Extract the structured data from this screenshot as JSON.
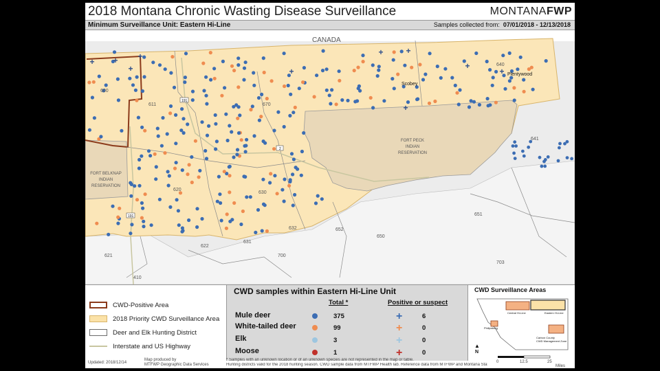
{
  "header": {
    "title": "2018 Montana Chronic Wasting Disease Surveillance",
    "brand_light": "MONTANA",
    "brand_bold": "FWP",
    "unit": "Minimum Surveillance Unit: Eastern Hi-Line",
    "samples_label": "Samples collected from:",
    "samples_range": "07/01/2018 - 12/13/2018"
  },
  "map": {
    "country_label": "CANADA",
    "places": [
      "Scobey",
      "Plentywood"
    ],
    "reservations": {
      "fort_peck": [
        "FORT PECK",
        "INDIAN",
        "RESERVATION"
      ],
      "fort_belknap": [
        "FORT BELKNAP",
        "INDIAN",
        "RESERVATION"
      ]
    },
    "districts": [
      "600",
      "611",
      "670",
      "640",
      "641",
      "620",
      "630",
      "632",
      "652",
      "650",
      "651",
      "622",
      "631",
      "700",
      "621",
      "410",
      "703"
    ],
    "highways": [
      "191",
      "2",
      "191"
    ]
  },
  "legend": {
    "items": [
      {
        "label": "CWD-Positive Area",
        "color": "#8b3a1a"
      },
      {
        "label": "2018 Priority CWD Surveillance Area",
        "color": "#fbe2a8"
      },
      {
        "label": "Deer and Elk Hunting District",
        "color": "#6b6b6b"
      },
      {
        "label": "Interstate and US Highway",
        "color": "#c8c6a0"
      }
    ]
  },
  "table": {
    "title": "CWD samples within Eastern Hi-Line Unit",
    "total_header": "Total *",
    "positive_header": "Positive or suspect",
    "rows": [
      {
        "species": "Mule deer",
        "color": "#3c6db3",
        "total": "375",
        "positive": "6"
      },
      {
        "species": "White-tailed deer",
        "color": "#ef8c50",
        "total": "99",
        "positive": "0"
      },
      {
        "species": "Elk",
        "color": "#9dc6e0",
        "total": "3",
        "positive": "0"
      },
      {
        "species": "Moose",
        "color": "#c0302a",
        "total": "1",
        "positive": "0"
      }
    ]
  },
  "inset": {
    "title": "CWD Surveillance Areas",
    "labels": [
      "Eastern Hi-Line",
      "Central Hi-Line",
      "Philipsburg",
      "Carbon County",
      "CWD Management Zone"
    ]
  },
  "footer": {
    "updated": "Updated: 2018/12/14",
    "produced_by": "Map produced by",
    "producer": "MTFWP Geographic Data Services",
    "note1": "* Samples with an unknown location or of an unknown species are not represented in the map or table.",
    "note2": "Hunting districts valid for the 2018 hunting season. CWD sample data from MTFWP Health lab. Reference data from MTFWP and Montana State Library.",
    "north": "N",
    "scale": [
      "0",
      "12.5",
      "25"
    ],
    "scale_unit": "Miles"
  }
}
